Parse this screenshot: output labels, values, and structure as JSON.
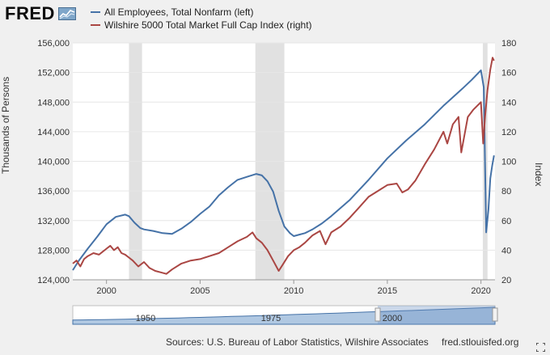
{
  "header": {
    "logo_text": "FRED",
    "logo_icon": "line-chart-icon"
  },
  "legend": {
    "items": [
      {
        "label": "All Employees, Total Nonfarm (left)",
        "color": "#4572a7"
      },
      {
        "label": "Wilshire 5000 Total Market Full Cap Index (right)",
        "color": "#aa4643"
      }
    ]
  },
  "axes": {
    "left_label": "Thousands of Persons",
    "right_label": "Index",
    "left_ticks": [
      "124,000",
      "128,000",
      "132,000",
      "136,000",
      "140,000",
      "144,000",
      "148,000",
      "152,000",
      "156,000"
    ],
    "right_ticks": [
      "20",
      "40",
      "60",
      "80",
      "100",
      "120",
      "140",
      "160",
      "180"
    ],
    "x_ticks": [
      "2000",
      "2005",
      "2010",
      "2015",
      "2020"
    ]
  },
  "navigator": {
    "labels": [
      "1950",
      "1975",
      "2000"
    ]
  },
  "footer": {
    "sources": "Sources: U.S. Bureau of Labor Statistics, Wilshire Associates",
    "url": "fred.stlouisfed.org"
  },
  "chart_data": {
    "type": "line",
    "xlim": [
      1998.2,
      2020.75
    ],
    "left_ylim": [
      124000,
      156000
    ],
    "right_ylim": [
      20,
      180
    ],
    "grid": true,
    "legend_position": "top-left",
    "recessions": [
      [
        2001.2,
        2001.9
      ],
      [
        2007.95,
        2009.5
      ],
      [
        2020.1,
        2020.35
      ]
    ],
    "series": [
      {
        "name": "All Employees, Total Nonfarm (left)",
        "axis": "left",
        "color": "#4572a7",
        "x": [
          1998.2,
          1998.5,
          1999.0,
          1999.5,
          2000.0,
          2000.5,
          2001.0,
          2001.2,
          2001.5,
          2001.8,
          2002.0,
          2002.5,
          2003.0,
          2003.5,
          2004.0,
          2004.5,
          2005.0,
          2005.5,
          2006.0,
          2006.5,
          2007.0,
          2007.5,
          2008.0,
          2008.3,
          2008.6,
          2008.9,
          2009.2,
          2009.5,
          2009.8,
          2010.0,
          2010.3,
          2010.6,
          2011.0,
          2011.5,
          2012.0,
          2013.0,
          2014.0,
          2015.0,
          2016.0,
          2017.0,
          2018.0,
          2019.0,
          2019.5,
          2020.0,
          2020.15,
          2020.28,
          2020.4,
          2020.5,
          2020.6,
          2020.7
        ],
        "values": [
          125300,
          126500,
          128200,
          129800,
          131500,
          132500,
          132800,
          132600,
          131700,
          131000,
          130800,
          130600,
          130300,
          130200,
          130900,
          131800,
          132900,
          133900,
          135400,
          136500,
          137500,
          137900,
          138300,
          138100,
          137300,
          135900,
          133300,
          131200,
          130300,
          129900,
          130100,
          130300,
          130800,
          131600,
          132600,
          134800,
          137500,
          140400,
          142800,
          145000,
          147500,
          149800,
          151000,
          152300,
          150000,
          130400,
          133500,
          137700,
          139400,
          140800
        ]
      },
      {
        "name": "Wilshire 5000 Total Market Full Cap Index (right)",
        "axis": "right",
        "color": "#aa4643",
        "x": [
          1998.2,
          1998.4,
          1998.6,
          1998.8,
          1999.0,
          1999.3,
          1999.6,
          2000.0,
          2000.2,
          2000.4,
          2000.6,
          2000.8,
          2001.0,
          2001.2,
          2001.4,
          2001.7,
          2002.0,
          2002.3,
          2002.6,
          2002.9,
          2003.2,
          2003.5,
          2004.0,
          2004.5,
          2005.0,
          2005.5,
          2006.0,
          2006.5,
          2007.0,
          2007.5,
          2007.8,
          2008.0,
          2008.3,
          2008.6,
          2008.9,
          2009.2,
          2009.4,
          2009.7,
          2010.0,
          2010.3,
          2010.6,
          2011.0,
          2011.4,
          2011.7,
          2012.0,
          2012.5,
          2013.0,
          2013.5,
          2014.0,
          2014.5,
          2015.0,
          2015.5,
          2015.8,
          2016.1,
          2016.5,
          2017.0,
          2017.5,
          2018.0,
          2018.2,
          2018.5,
          2018.8,
          2018.95,
          2019.3,
          2019.6,
          2020.0,
          2020.12,
          2020.22,
          2020.35,
          2020.5,
          2020.62,
          2020.7
        ],
        "values": [
          31,
          33,
          29,
          34,
          36,
          38,
          37,
          41,
          43,
          40,
          42,
          38,
          37,
          35,
          33,
          29,
          32,
          28,
          26,
          25,
          24,
          27,
          31,
          33,
          34,
          36,
          38,
          42,
          46,
          49,
          52,
          48,
          45,
          40,
          33,
          26,
          30,
          36,
          40,
          42,
          45,
          50,
          53,
          44,
          52,
          56,
          62,
          69,
          76,
          80,
          84,
          85,
          79,
          81,
          87,
          98,
          108,
          120,
          112,
          125,
          130,
          106,
          130,
          135,
          140,
          112,
          130,
          148,
          162,
          170,
          168
        ]
      }
    ]
  }
}
